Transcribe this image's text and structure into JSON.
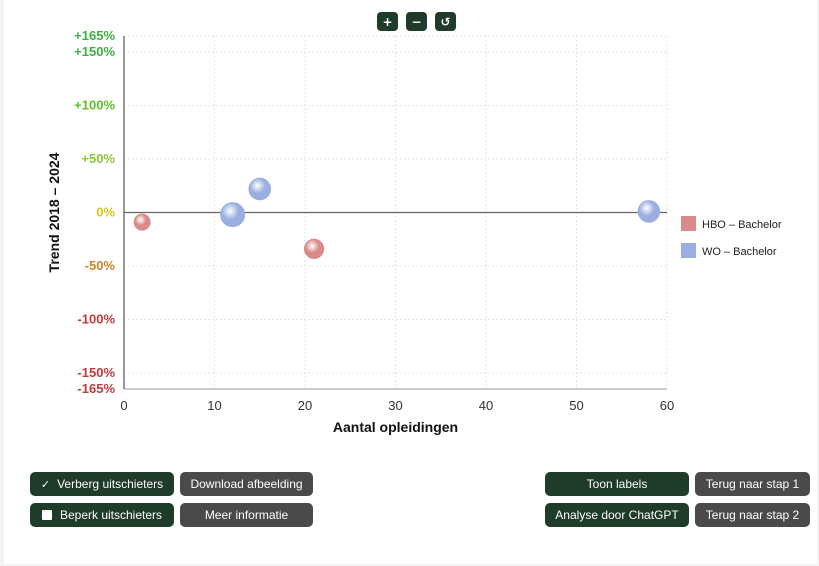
{
  "zoom": {
    "zoom_in_label": "+",
    "zoom_out_label": "−",
    "reset_label": "↺"
  },
  "chart_data": {
    "type": "scatter",
    "title": "",
    "xlabel": "Aantal opleidingen",
    "ylabel": "Trend 2018 – 2024",
    "xlim": [
      0,
      60
    ],
    "ylim": [
      -165,
      165
    ],
    "x_ticks": [
      "0",
      "10",
      "20",
      "30",
      "40",
      "50",
      "60"
    ],
    "y_ticks": [
      {
        "value": 165,
        "label": "+165%",
        "color": "#3cb043"
      },
      {
        "value": 150,
        "label": "+150%",
        "color": "#3cb043"
      },
      {
        "value": 100,
        "label": "+100%",
        "color": "#5cbf2a"
      },
      {
        "value": 50,
        "label": "+50%",
        "color": "#8cc63f"
      },
      {
        "value": 0,
        "label": "0%",
        "color": "#d4c820"
      },
      {
        "value": -50,
        "label": "-50%",
        "color": "#c9852b"
      },
      {
        "value": -100,
        "label": "-100%",
        "color": "#c0393b"
      },
      {
        "value": -150,
        "label": "-150%",
        "color": "#c0393b"
      },
      {
        "value": -165,
        "label": "-165%",
        "color": "#c0393b"
      }
    ],
    "grid": true,
    "legend_position": "right",
    "series": [
      {
        "name": "HBO – Bachelor",
        "color": "#d98a8a",
        "points": [
          {
            "x": 2,
            "y": -9,
            "size": 1
          },
          {
            "x": 21,
            "y": -34,
            "size": 1.2
          }
        ]
      },
      {
        "name": "WO – Bachelor",
        "color": "#9aaee0",
        "points": [
          {
            "x": 12,
            "y": -2,
            "size": 1.5
          },
          {
            "x": 15,
            "y": 22,
            "size": 1.35
          },
          {
            "x": 58,
            "y": 1,
            "size": 1.35
          }
        ]
      }
    ]
  },
  "controls": {
    "hide_outliers": {
      "label": "Verberg uitschieters",
      "checked": true,
      "check_glyph": "✓"
    },
    "limit_outliers": {
      "label": "Beperk uitschieters",
      "checked": false
    },
    "download": "Download afbeelding",
    "more_info": "Meer informatie",
    "show_labels": "Toon labels",
    "chatgpt": "Analyse door ChatGPT",
    "back_step1": "Terug naar stap 1",
    "back_step2": "Terug naar stap 2"
  }
}
